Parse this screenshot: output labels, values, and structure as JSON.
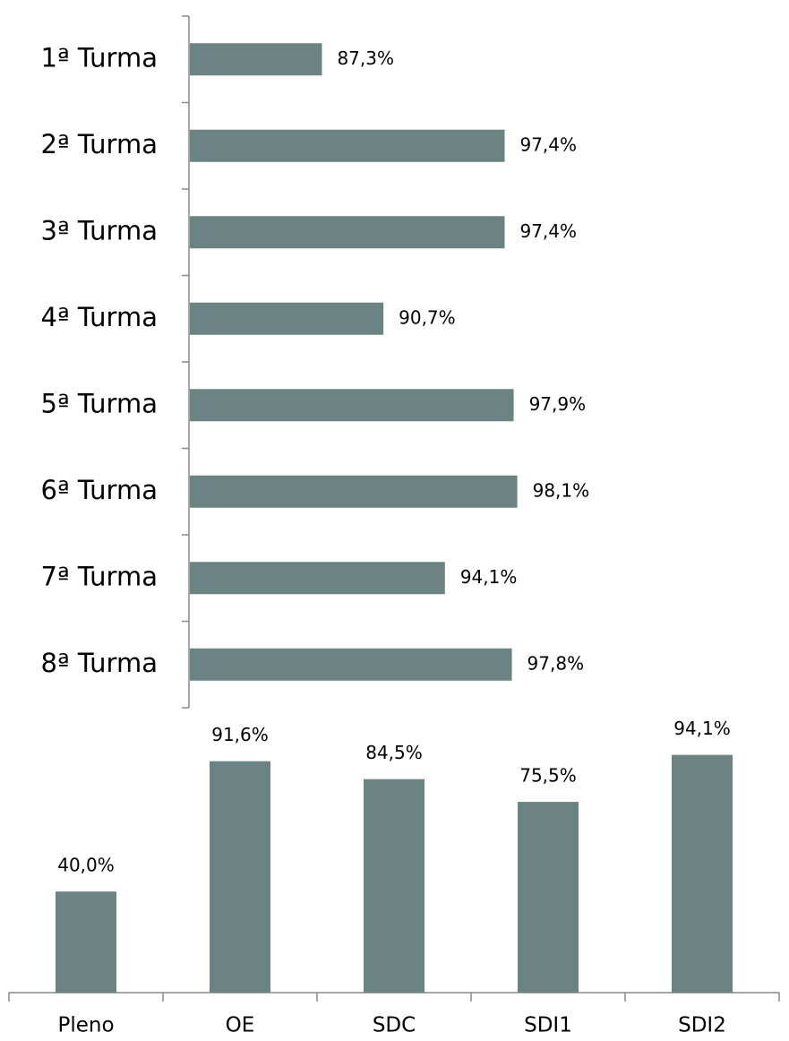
{
  "chart_data": [
    {
      "type": "hbar",
      "categories": [
        "1ª Turma",
        "2ª Turma",
        "3ª Turma",
        "4ª Turma",
        "5ª Turma",
        "6ª Turma",
        "7ª Turma",
        "8ª Turma"
      ],
      "values": [
        87.3,
        97.4,
        97.4,
        90.7,
        97.9,
        98.1,
        94.1,
        97.8
      ],
      "value_labels": [
        "87,3%",
        "97,4%",
        "97,4%",
        "90,7%",
        "97,9%",
        "98,1%",
        "94,1%",
        "97,8%"
      ],
      "color": "#6b8483",
      "xlim": [
        80,
        100
      ]
    },
    {
      "type": "bar",
      "categories": [
        "Pleno",
        "OE",
        "SDC",
        "SDI1",
        "SDI2"
      ],
      "values": [
        40.0,
        91.6,
        84.5,
        75.5,
        94.1
      ],
      "value_labels": [
        "40,0%",
        "91,6%",
        "84,5%",
        "75,5%",
        "94,1%"
      ],
      "color": "#6b8483",
      "ylim": [
        0,
        100
      ]
    }
  ]
}
